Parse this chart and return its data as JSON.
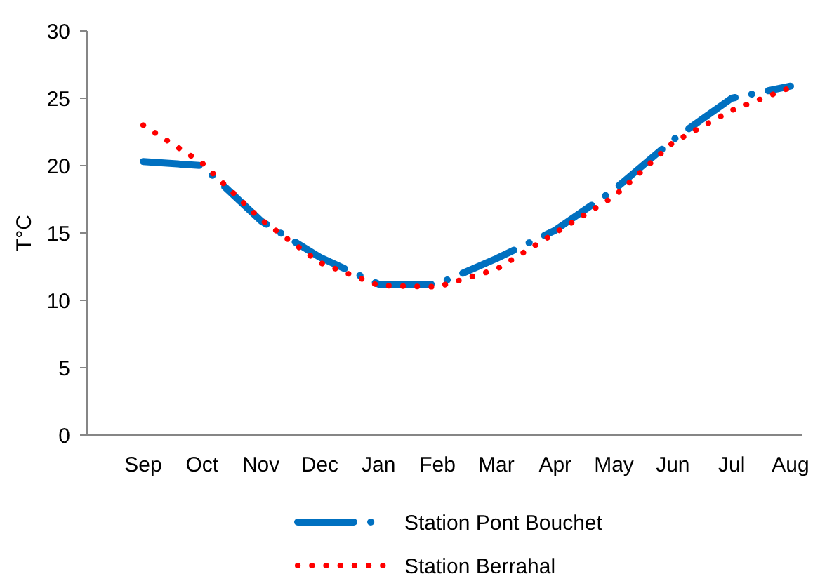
{
  "chart_data": {
    "type": "line",
    "ylabel": "T°C",
    "categories": [
      "Sep",
      "Oct",
      "Nov",
      "Dec",
      "Jan",
      "Feb",
      "Mar",
      "Apr",
      "May",
      "Jun",
      "Jul",
      "Aug"
    ],
    "ylim": [
      0,
      30
    ],
    "yticks": [
      0,
      5,
      10,
      15,
      20,
      25,
      30
    ],
    "grid": false,
    "legend": "bottom",
    "marker": "none",
    "series": [
      {
        "name": "Station Pont Bouchet",
        "color": "#0070c0",
        "line_style": "dashed",
        "values": [
          20.3,
          20.0,
          15.9,
          13.2,
          11.2,
          11.2,
          13.1,
          15.2,
          18.2,
          21.9,
          25.0,
          25.9
        ]
      },
      {
        "name": "Station Berrahal",
        "color": "#ff0000",
        "line_style": "dotted",
        "values": [
          23.0,
          20.2,
          16.0,
          12.8,
          11.1,
          11.0,
          12.3,
          15.0,
          17.7,
          21.7,
          24.1,
          25.8
        ]
      }
    ]
  }
}
